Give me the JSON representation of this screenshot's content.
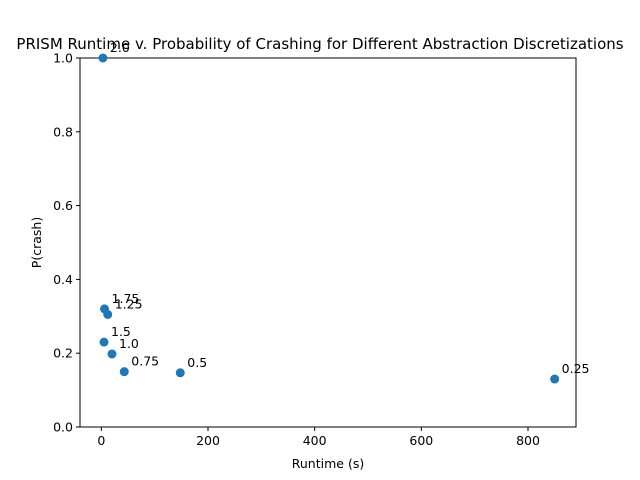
{
  "chart_data": {
    "type": "scatter",
    "title": "PRISM Runtime v. Probability of Crashing for Different Abstraction Discretizations",
    "xlabel": "Runtime (s)",
    "ylabel": "P(crash)",
    "xlim": [
      -40,
      890
    ],
    "ylim": [
      0.0,
      1.0
    ],
    "xticks": [
      0,
      200,
      400,
      600,
      800
    ],
    "xtick_labels": [
      "0",
      "200",
      "400",
      "600",
      "800"
    ],
    "yticks": [
      0.0,
      0.2,
      0.4,
      0.6,
      0.8,
      1.0
    ],
    "ytick_labels": [
      "0.0",
      "0.2",
      "0.4",
      "0.6",
      "0.8",
      "1.0"
    ],
    "grid": false,
    "marker_color": "#1f77b4",
    "points": [
      {
        "label": "2.0",
        "x": 3,
        "y": 1.0
      },
      {
        "label": "1.75",
        "x": 6,
        "y": 0.32
      },
      {
        "label": "1.25",
        "x": 12,
        "y": 0.305
      },
      {
        "label": "1.5",
        "x": 5,
        "y": 0.23
      },
      {
        "label": "1.0",
        "x": 20,
        "y": 0.198
      },
      {
        "label": "0.75",
        "x": 43,
        "y": 0.15
      },
      {
        "label": "0.5",
        "x": 148,
        "y": 0.147
      },
      {
        "label": "0.25",
        "x": 850,
        "y": 0.13
      }
    ]
  }
}
